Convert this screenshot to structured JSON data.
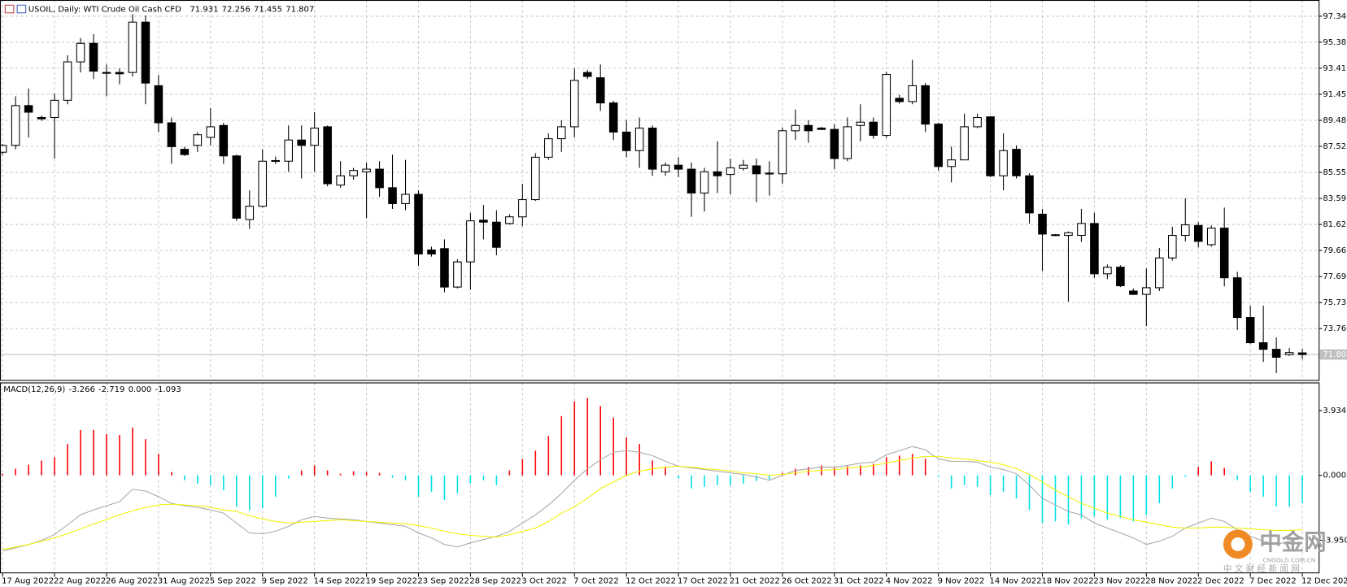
{
  "chart_data": [
    {
      "type": "candlestick",
      "title": "USOIL, Daily:  WTI Crude Oil Cash CFD",
      "categories": [
        "17 Aug 2022",
        null,
        null,
        null,
        "22 Aug 2022",
        null,
        null,
        null,
        "26 Aug 2022",
        null,
        null,
        null,
        "31 Aug 2022",
        null,
        null,
        null,
        "5 Sep 2022",
        null,
        null,
        null,
        "9 Sep 2022",
        null,
        null,
        null,
        "14 Sep 2022",
        null,
        null,
        null,
        "19 Sep 2022",
        null,
        null,
        null,
        "23 Sep 2022",
        null,
        null,
        null,
        "28 Sep 2022",
        null,
        null,
        null,
        "3 Oct 2022",
        null,
        null,
        null,
        "7 Oct 2022",
        null,
        null,
        null,
        "12 Oct 2022",
        null,
        null,
        null,
        "17 Oct 2022",
        null,
        null,
        null,
        "21 Oct 2022",
        null,
        null,
        null,
        "26 Oct 2022",
        null,
        null,
        null,
        "31 Oct 2022",
        null,
        null,
        null,
        "4 Nov 2022",
        null,
        null,
        null,
        "9 Nov 2022",
        null,
        null,
        null,
        "14 Nov 2022",
        null,
        null,
        null,
        "18 Nov 2022",
        null,
        null,
        null,
        "23 Nov 2022",
        null,
        null,
        null,
        "28 Nov 2022",
        null,
        null,
        null,
        "2 Dec 2022",
        null,
        null,
        null,
        "7 Dec 2022",
        null,
        null,
        null,
        "12 Dec 2022"
      ],
      "open": [
        87.08,
        87.6,
        90.6,
        89.7,
        89.7,
        91.0,
        93.9,
        95.3,
        93.1,
        93.1,
        93.1,
        96.9,
        92.1,
        89.3,
        87.3,
        87.6,
        88.2,
        89.1,
        86.8,
        82.0,
        83.0,
        86.4,
        86.4,
        88.0,
        87.6,
        89.0,
        84.6,
        85.3,
        85.6,
        85.8,
        84.4,
        83.2,
        83.9,
        79.7,
        79.8,
        76.9,
        78.8,
        81.95,
        81.8,
        81.7,
        82.2,
        83.5,
        86.7,
        88.1,
        89.0,
        93.1,
        92.7,
        90.8,
        88.6,
        87.2,
        88.9,
        85.6,
        86.1,
        85.8,
        84.0,
        85.6,
        85.4,
        85.85,
        86.05,
        85.45,
        85.45,
        88.7,
        89.1,
        88.9,
        88.8,
        86.6,
        89.1,
        89.35,
        88.35,
        91.15,
        90.9,
        92.1,
        89.2,
        86.0,
        86.5,
        89.0,
        89.75,
        85.3,
        87.3,
        85.3,
        82.4,
        80.8,
        80.8,
        80.8,
        81.7,
        77.9,
        78.4,
        76.6,
        76.35,
        76.85,
        79.1,
        80.8,
        81.55,
        80.1,
        81.35,
        77.6,
        74.6,
        72.7,
        72.2,
        71.8,
        71.931
      ],
      "high": [
        87.7,
        91.3,
        91.9,
        89.85,
        91.5,
        94.4,
        95.7,
        96.0,
        93.7,
        93.4,
        97.5,
        97.4,
        92.9,
        89.7,
        87.5,
        88.6,
        90.4,
        89.3,
        86.9,
        84.2,
        87.3,
        86.75,
        89.1,
        89.1,
        90.1,
        89.1,
        86.4,
        85.9,
        86.3,
        86.4,
        86.9,
        86.5,
        84.2,
        79.95,
        80.5,
        79.0,
        82.5,
        83.1,
        82.7,
        82.4,
        84.7,
        87.0,
        88.5,
        89.5,
        93.4,
        93.3,
        93.7,
        90.95,
        89.5,
        89.7,
        89.1,
        86.3,
        86.7,
        86.3,
        85.9,
        87.9,
        86.6,
        86.5,
        86.6,
        86.4,
        88.95,
        90.3,
        89.5,
        89.0,
        89.2,
        89.7,
        90.7,
        89.7,
        93.15,
        91.4,
        94.05,
        92.3,
        89.3,
        87.5,
        90.0,
        90.0,
        89.8,
        88.5,
        87.6,
        85.5,
        82.8,
        80.9,
        81.1,
        82.8,
        82.5,
        78.6,
        78.55,
        76.8,
        78.3,
        79.85,
        81.45,
        83.6,
        81.8,
        81.55,
        82.9,
        78.05,
        75.5,
        75.5,
        73.1,
        72.3,
        72.256
      ],
      "low": [
        86.9,
        87.3,
        88.2,
        89.45,
        86.6,
        90.7,
        93.1,
        92.6,
        91.3,
        92.2,
        92.8,
        90.7,
        88.6,
        86.2,
        86.8,
        87.1,
        87.6,
        86.2,
        81.9,
        81.3,
        82.9,
        86.2,
        85.6,
        85.1,
        85.6,
        84.5,
        84.4,
        85.0,
        82.1,
        83.7,
        82.8,
        82.7,
        78.5,
        79.2,
        76.5,
        76.8,
        76.7,
        80.5,
        79.3,
        81.6,
        81.5,
        83.4,
        86.5,
        87.1,
        88.2,
        92.6,
        90.2,
        88.0,
        86.7,
        85.9,
        85.3,
        85.3,
        85.2,
        82.2,
        82.6,
        84.0,
        83.9,
        85.7,
        83.3,
        83.8,
        84.7,
        88.0,
        87.8,
        88.75,
        85.8,
        86.4,
        87.9,
        88.1,
        88.15,
        90.75,
        90.7,
        88.6,
        85.7,
        84.8,
        86.5,
        88.9,
        85.2,
        84.2,
        85.1,
        81.7,
        78.1,
        80.75,
        75.8,
        80.3,
        77.6,
        77.5,
        76.9,
        76.3,
        73.95,
        76.6,
        78.9,
        80.35,
        79.9,
        79.95,
        76.95,
        73.65,
        72.6,
        71.25,
        70.4,
        71.7,
        71.455
      ],
      "close": [
        87.59,
        90.6,
        90.1,
        89.6,
        91.0,
        93.9,
        95.3,
        93.2,
        93.05,
        93.0,
        96.9,
        92.3,
        89.3,
        87.5,
        86.9,
        88.4,
        89.0,
        86.8,
        82.1,
        83.0,
        86.4,
        86.45,
        88.0,
        87.6,
        88.9,
        84.7,
        85.3,
        85.7,
        85.8,
        84.4,
        83.2,
        83.9,
        79.4,
        79.4,
        76.9,
        78.8,
        81.9,
        81.8,
        79.9,
        82.2,
        83.5,
        86.7,
        88.1,
        89.0,
        92.5,
        92.8,
        90.8,
        88.6,
        87.2,
        88.9,
        85.8,
        86.1,
        85.8,
        84.0,
        85.6,
        85.3,
        85.9,
        86.1,
        85.45,
        85.5,
        88.7,
        89.1,
        88.7,
        88.8,
        86.6,
        89.0,
        89.35,
        88.35,
        92.95,
        90.9,
        92.1,
        89.2,
        86.0,
        86.5,
        89.0,
        89.7,
        85.3,
        87.2,
        85.3,
        82.5,
        80.9,
        80.85,
        81.0,
        81.7,
        77.9,
        78.4,
        77.0,
        76.35,
        76.85,
        79.1,
        80.8,
        81.6,
        80.35,
        81.35,
        77.6,
        74.6,
        72.7,
        72.2,
        71.6,
        71.95,
        71.807
      ],
      "ylim": [
        69.89,
        98.57
      ],
      "yticks": [
        97.346,
        95.381,
        93.416,
        91.451,
        89.486,
        87.521,
        85.556,
        83.591,
        81.626,
        79.661,
        77.696,
        75.731,
        73.766
      ],
      "grid": true,
      "up_color": "#ffffff",
      "down_color": "#000000",
      "outline_color": "#000000"
    },
    {
      "type": "macd",
      "title": "MACD(12,26,9)",
      "indicator_values": [
        -3.266,
        -2.719,
        {
          "value": 0,
          "label": "0.000"
        },
        -1.093
      ],
      "histogram": {
        "positive_color": "#ff0000",
        "negative_color": "#00e0e8",
        "values": [
          0.1,
          0.4,
          0.65,
          0.9,
          1.1,
          1.9,
          2.75,
          2.75,
          2.5,
          2.45,
          2.9,
          2.2,
          1.3,
          0.2,
          -0.3,
          -0.5,
          -0.6,
          -0.9,
          -1.9,
          -2.1,
          -2.0,
          -1.3,
          -0.2,
          0.3,
          0.6,
          0.3,
          0.1,
          0.25,
          0.2,
          0.15,
          -0.15,
          -0.3,
          -1.3,
          -1.0,
          -1.5,
          -1.1,
          -0.5,
          -0.3,
          -0.6,
          0.3,
          1.0,
          1.5,
          2.4,
          3.6,
          4.5,
          4.7,
          4.2,
          3.5,
          2.3,
          1.9,
          0.9,
          0.5,
          -0.2,
          -0.8,
          -0.7,
          -0.6,
          -0.6,
          -0.5,
          -0.35,
          -0.25,
          0.15,
          0.4,
          0.5,
          0.6,
          0.45,
          0.55,
          0.6,
          0.7,
          1.1,
          1.2,
          1.3,
          1.0,
          -0.1,
          -0.8,
          -0.6,
          -0.7,
          -1.2,
          -1.0,
          -1.4,
          -2.1,
          -2.9,
          -2.8,
          -3.0,
          -2.6,
          -2.5,
          -2.7,
          -2.6,
          -2.8,
          -2.4,
          -1.7,
          -0.8,
          -0.1,
          0.5,
          0.85,
          0.45,
          -0.3,
          -1.0,
          -1.3,
          -1.9,
          -1.9,
          -1.7
        ]
      },
      "series": [
        {
          "color": "#a8a8a8",
          "values": [
            -4.6,
            -4.4,
            -4.2,
            -3.95,
            -3.6,
            -3.0,
            -2.4,
            -2.1,
            -1.85,
            -1.6,
            -0.85,
            -0.95,
            -1.3,
            -1.7,
            -1.85,
            -1.95,
            -2.1,
            -2.3,
            -2.9,
            -3.5,
            -3.55,
            -3.4,
            -3.1,
            -2.7,
            -2.5,
            -2.6,
            -2.65,
            -2.7,
            -2.8,
            -2.9,
            -3.0,
            -3.1,
            -3.5,
            -3.8,
            -4.2,
            -4.35,
            -4.1,
            -3.9,
            -3.7,
            -3.4,
            -2.9,
            -2.4,
            -1.8,
            -1.1,
            -0.3,
            0.4,
            0.95,
            1.4,
            1.5,
            1.4,
            1.2,
            0.85,
            0.55,
            0.45,
            0.35,
            0.25,
            0.15,
            0.05,
            -0.1,
            -0.3,
            0.0,
            0.3,
            0.4,
            0.5,
            0.5,
            0.6,
            0.75,
            0.8,
            1.25,
            1.5,
            1.75,
            1.55,
            1.0,
            0.85,
            0.85,
            0.8,
            0.5,
            0.35,
            0.1,
            -0.6,
            -1.4,
            -1.8,
            -2.2,
            -2.4,
            -2.9,
            -3.2,
            -3.5,
            -3.8,
            -4.2,
            -4.0,
            -3.7,
            -3.2,
            -2.9,
            -2.6,
            -2.8,
            -3.3,
            -3.7,
            -4.0,
            -4.2,
            -4.0,
            -3.8
          ]
        },
        {
          "color": "#f2f200",
          "values": [
            -4.5,
            -4.35,
            -4.2,
            -4.0,
            -3.8,
            -3.55,
            -3.25,
            -2.95,
            -2.7,
            -2.4,
            -2.15,
            -1.95,
            -1.8,
            -1.75,
            -1.8,
            -1.85,
            -1.95,
            -2.1,
            -2.2,
            -2.45,
            -2.65,
            -2.8,
            -2.9,
            -2.85,
            -2.8,
            -2.75,
            -2.7,
            -2.75,
            -2.8,
            -2.85,
            -2.9,
            -2.95,
            -3.05,
            -3.2,
            -3.4,
            -3.55,
            -3.65,
            -3.7,
            -3.75,
            -3.6,
            -3.4,
            -3.2,
            -2.8,
            -2.3,
            -1.9,
            -1.4,
            -0.8,
            -0.4,
            0.0,
            0.25,
            0.4,
            0.5,
            0.55,
            0.5,
            0.4,
            0.35,
            0.25,
            0.15,
            0.1,
            0.0,
            0.05,
            0.15,
            0.25,
            0.3,
            0.35,
            0.45,
            0.5,
            0.6,
            0.75,
            0.9,
            1.05,
            1.15,
            1.15,
            1.05,
            1.0,
            0.9,
            0.8,
            0.65,
            0.4,
            0.05,
            -0.4,
            -0.9,
            -1.3,
            -1.7,
            -2.0,
            -2.3,
            -2.5,
            -2.7,
            -2.85,
            -3.0,
            -3.15,
            -3.2,
            -3.2,
            -3.15,
            -3.15,
            -3.2,
            -3.25,
            -3.3,
            -3.35,
            -3.35,
            -3.3
          ]
        }
      ],
      "ylim": [
        -5.9,
        5.64
      ],
      "yticks": [
        3.934,
        {
          "value": 0,
          "label": "0.000"
        },
        {
          "value": -3.95,
          "label": "-3.950"
        }
      ]
    }
  ],
  "watermark": {
    "brand": "中金网",
    "domain": "CNGOLD.COM.CN",
    "slogan": "中 文 财 经 新 闻 网"
  }
}
